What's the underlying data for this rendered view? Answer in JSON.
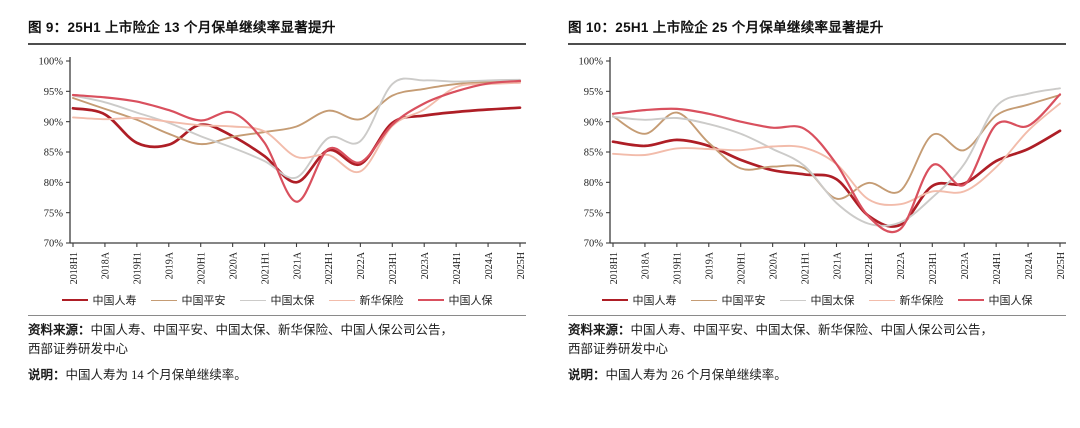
{
  "accent_colors": {
    "axis": "#3c3c3c",
    "title_rule": "#4d4d4d",
    "source_rule": "#8a8a8a"
  },
  "chart_data": [
    {
      "type": "line",
      "title": "图 9：25H1 上市险企 13 个月保单继续率显著提升",
      "xlabel": "",
      "ylabel": "",
      "ylim": [
        70,
        100
      ],
      "y_tick_step": 5,
      "y_tick_labels": [
        "100%",
        "95%",
        "90%",
        "85%",
        "80%",
        "75%",
        "70%"
      ],
      "grid": false,
      "legend_position": "bottom",
      "categories": [
        "2018H1",
        "2018A",
        "2019H1",
        "2019A",
        "2020H1",
        "2020A",
        "2021H1",
        "2021A",
        "2022H1",
        "2022A",
        "2023H1",
        "2023A",
        "2024H1",
        "2024A",
        "2025H"
      ],
      "series": [
        {
          "name": "中国人寿",
          "color": "#ae1e26",
          "width": 2.7,
          "values": [
            92.2,
            91.2,
            86.5,
            86.2,
            89.5,
            87.6,
            84.3,
            80.0,
            85.3,
            83.0,
            89.8,
            91.0,
            91.6,
            92.0,
            92.3
          ]
        },
        {
          "name": "中国平安",
          "color": "#c59c74",
          "width": 1.9,
          "values": [
            93.9,
            92.1,
            90.3,
            88.0,
            86.3,
            87.5,
            88.3,
            89.2,
            91.8,
            90.4,
            94.3,
            95.4,
            96.2,
            96.5,
            96.6
          ]
        },
        {
          "name": "中国太保",
          "color": "#cccbc9",
          "width": 1.9,
          "values": [
            94.3,
            93.2,
            91.5,
            89.8,
            87.6,
            85.7,
            83.5,
            80.8,
            87.3,
            86.8,
            96.2,
            96.8,
            96.6,
            96.8,
            96.9
          ]
        },
        {
          "name": "新华保险",
          "color": "#f2bcab",
          "width": 1.9,
          "values": [
            90.7,
            90.4,
            90.6,
            90.0,
            89.4,
            89.2,
            88.4,
            84.2,
            84.5,
            81.8,
            89.3,
            92.0,
            95.7,
            96.2,
            96.4
          ]
        },
        {
          "name": "中国人保",
          "color": "#d9505e",
          "width": 2.2,
          "values": [
            94.4,
            94.0,
            93.3,
            91.9,
            90.2,
            91.5,
            86.5,
            76.8,
            85.5,
            83.3,
            89.5,
            93.0,
            95.0,
            96.3,
            96.7
          ]
        }
      ],
      "source_prefix": "资料来源：",
      "source_line1": "中国人寿、中国平安、中国太保、新华保险、中国人保公司公告，",
      "source_line2": "西部证券研发中心",
      "note_prefix": "说明：",
      "note_text": "中国人寿为 14 个月保单继续率。"
    },
    {
      "type": "line",
      "title": "图 10：25H1 上市险企 25 个月保单继续率显著提升",
      "xlabel": "",
      "ylabel": "",
      "ylim": [
        70,
        100
      ],
      "y_tick_step": 5,
      "y_tick_labels": [
        "100%",
        "95%",
        "90%",
        "85%",
        "80%",
        "75%",
        "70%"
      ],
      "grid": false,
      "legend_position": "bottom",
      "categories": [
        "2018H1",
        "2018A",
        "2019H1",
        "2019A",
        "2020H1",
        "2020A",
        "2021H1",
        "2021A",
        "2022H1",
        "2022A",
        "2023H1",
        "2023A",
        "2024H1",
        "2024A",
        "2025H"
      ],
      "series": [
        {
          "name": "中国人寿",
          "color": "#ae1e26",
          "width": 2.7,
          "values": [
            86.7,
            86.0,
            87.0,
            86.0,
            83.7,
            82.0,
            81.3,
            80.5,
            74.5,
            73.0,
            79.4,
            79.8,
            83.5,
            85.5,
            88.5
          ]
        },
        {
          "name": "中国平安",
          "color": "#c59c74",
          "width": 1.9,
          "values": [
            90.9,
            88.0,
            91.5,
            86.5,
            82.3,
            82.6,
            82.3,
            77.3,
            79.9,
            78.6,
            87.8,
            85.3,
            91.0,
            92.8,
            94.4
          ]
        },
        {
          "name": "中国太保",
          "color": "#cccbc9",
          "width": 1.9,
          "values": [
            90.8,
            90.3,
            90.6,
            89.6,
            88.0,
            85.5,
            82.7,
            76.6,
            73.2,
            73.4,
            77.5,
            83.0,
            92.5,
            94.6,
            95.5
          ]
        },
        {
          "name": "新华保险",
          "color": "#f2bcab",
          "width": 1.9,
          "values": [
            84.7,
            84.5,
            85.6,
            85.5,
            85.3,
            85.9,
            85.7,
            83.0,
            77.2,
            76.4,
            78.5,
            78.5,
            82.5,
            88.5,
            93.0
          ]
        },
        {
          "name": "中国人保",
          "color": "#d9505e",
          "width": 2.2,
          "values": [
            91.3,
            91.9,
            92.1,
            91.3,
            90.0,
            89.0,
            88.8,
            83.0,
            74.4,
            72.3,
            82.8,
            79.6,
            89.5,
            89.3,
            94.5
          ]
        }
      ],
      "source_prefix": "资料来源：",
      "source_line1": "中国人寿、中国平安、中国太保、新华保险、中国人保公司公告，",
      "source_line2": "西部证券研发中心",
      "note_prefix": "说明：",
      "note_text": "中国人寿为 26 个月保单继续率。"
    }
  ]
}
